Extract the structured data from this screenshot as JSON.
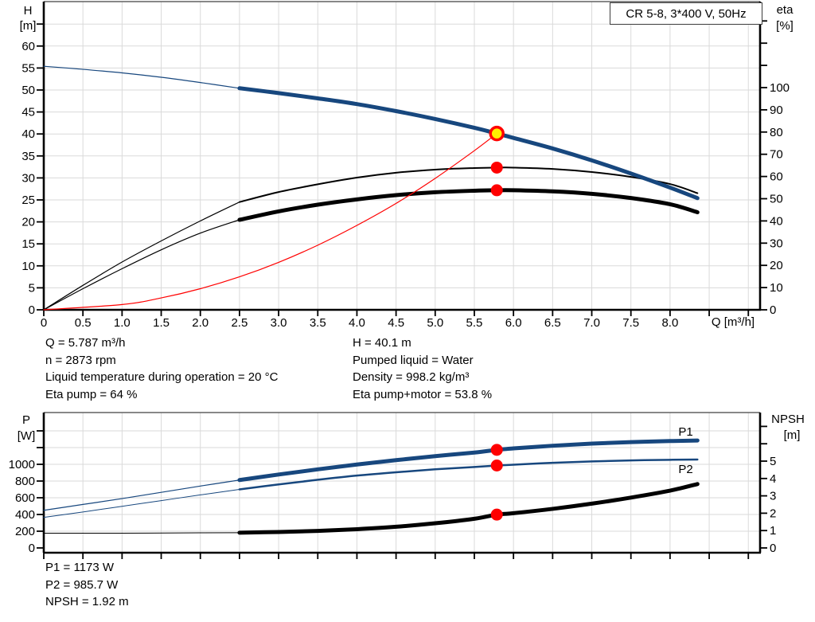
{
  "title_box": "CR 5-8, 3*400 V, 50Hz",
  "colors": {
    "curve_blue": "#17477E",
    "curve_black": "#000000",
    "curve_red": "#FF0000",
    "marker_red": "#FF0000",
    "marker_yellow": "#FFEE00",
    "grid": "#DADADA",
    "axis": "#000000",
    "border": "#606060",
    "label_blue": "#17477E"
  },
  "info_duty": [
    "Q = 5.787 m³/h",
    "n = 2873 rpm",
    "Liquid temperature during operation = 20 °C",
    "Eta pump = 64 %"
  ],
  "info_liquid": [
    "H = 40.1 m",
    "Pumped liquid = Water",
    "Density = 998.2 kg/m³",
    "Eta pump+motor = 53.8 %"
  ],
  "info_power": [
    "P1 = 1173 W",
    "P2 = 985.7 W",
    "NPSH = 1.92 m"
  ],
  "chart_data": [
    {
      "type": "line",
      "title": "CR 5-8, 3*400 V, 50Hz",
      "x_axis": {
        "label": "Q [m³/h]",
        "min": 0,
        "max": 9.15,
        "tick_step": 0.5,
        "label_max": 8.0
      },
      "y_left": {
        "label": "H",
        "unit": "[m]",
        "min": 0,
        "max": 70,
        "tick_step": 5,
        "label_max": 60
      },
      "y_right": {
        "label": "eta",
        "unit": "[%]",
        "min": 0,
        "max": 138,
        "tick_step": 10,
        "label_max": 100
      },
      "grid": true,
      "series": [
        {
          "name": "eta-pump-low-flow",
          "axis": "right",
          "color": "#000000",
          "width": 1.2,
          "points": [
            [
              0,
              0
            ],
            [
              0.5,
              11
            ],
            [
              1,
              21.5
            ],
            [
              1.5,
              31
            ],
            [
              2,
              40
            ],
            [
              2.5,
              48.5
            ]
          ]
        },
        {
          "name": "eta-pump-curve",
          "axis": "right",
          "color": "#000000",
          "width": 2,
          "points": [
            [
              2.5,
              48.5
            ],
            [
              3,
              53
            ],
            [
              3.5,
              56.5
            ],
            [
              4,
              59.5
            ],
            [
              4.5,
              61.7
            ],
            [
              5,
              63.1
            ],
            [
              5.5,
              63.8
            ],
            [
              5.787,
              64
            ],
            [
              6,
              64
            ],
            [
              6.5,
              63.4
            ],
            [
              7,
              62
            ],
            [
              7.5,
              59.8
            ],
            [
              8,
              56.6
            ],
            [
              8.35,
              52.5
            ]
          ]
        },
        {
          "name": "eta-pump-motor-low-flow",
          "axis": "right",
          "color": "#000000",
          "width": 1.2,
          "points": [
            [
              0,
              0
            ],
            [
              0.5,
              9.5
            ],
            [
              1,
              18.5
            ],
            [
              1.5,
              27
            ],
            [
              2,
              34.5
            ],
            [
              2.5,
              40.5
            ]
          ]
        },
        {
          "name": "eta-pump-motor-curve",
          "axis": "right",
          "color": "#000000",
          "width": 5,
          "points": [
            [
              2.5,
              40.5
            ],
            [
              3,
              44.3
            ],
            [
              3.5,
              47.3
            ],
            [
              4,
              49.7
            ],
            [
              4.5,
              51.6
            ],
            [
              5,
              52.9
            ],
            [
              5.5,
              53.6
            ],
            [
              5.787,
              53.8
            ],
            [
              6,
              53.8
            ],
            [
              6.5,
              53.3
            ],
            [
              7,
              52.2
            ],
            [
              7.5,
              50.3
            ],
            [
              8,
              47.5
            ],
            [
              8.35,
              43.9
            ]
          ]
        },
        {
          "name": "head-curve-low-flow",
          "axis": "left",
          "color": "#17477E",
          "width": 1.2,
          "points": [
            [
              0,
              55.4
            ],
            [
              0.5,
              54.7
            ],
            [
              1,
              53.9
            ],
            [
              1.5,
              52.9
            ],
            [
              2,
              51.7
            ],
            [
              2.5,
              50.4
            ]
          ]
        },
        {
          "name": "head-curve",
          "axis": "left",
          "color": "#17477E",
          "width": 5,
          "points": [
            [
              2.5,
              50.4
            ],
            [
              3,
              49.3
            ],
            [
              3.5,
              48.1
            ],
            [
              4,
              46.8
            ],
            [
              4.5,
              45.2
            ],
            [
              5,
              43.4
            ],
            [
              5.5,
              41.4
            ],
            [
              5.787,
              40.1
            ],
            [
              6,
              39.1
            ],
            [
              6.5,
              36.7
            ],
            [
              7,
              34
            ],
            [
              7.5,
              31
            ],
            [
              8,
              27.8
            ],
            [
              8.35,
              25.4
            ]
          ]
        },
        {
          "name": "system-curve",
          "axis": "left",
          "color": "#FF0000",
          "width": 1.2,
          "points": [
            [
              0,
              0
            ],
            [
              1,
              1.2
            ],
            [
              1.5,
              2.7
            ],
            [
              2,
              4.8
            ],
            [
              2.5,
              7.5
            ],
            [
              3,
              10.8
            ],
            [
              3.5,
              14.7
            ],
            [
              4,
              19.2
            ],
            [
              4.5,
              24.2
            ],
            [
              5,
              29.9
            ],
            [
              5.5,
              36.2
            ],
            [
              5.787,
              40.1
            ]
          ]
        }
      ],
      "markers": [
        {
          "name": "duty-point",
          "axis": "left",
          "x": 5.787,
          "y": 40.1,
          "style": "ring-yellow"
        },
        {
          "name": "eta-pump-point",
          "axis": "right",
          "x": 5.787,
          "y": 64,
          "style": "dot-red"
        },
        {
          "name": "eta-pump-motor-point",
          "axis": "right",
          "x": 5.787,
          "y": 53.8,
          "style": "dot-red"
        }
      ],
      "labels": []
    },
    {
      "type": "line",
      "title": "",
      "x_axis": {
        "label": "",
        "min": 0,
        "max": 9.15,
        "tick_step": 0.5,
        "label_max": -1
      },
      "y_left": {
        "label": "P",
        "unit": "[W]",
        "min": 0,
        "max": 1550,
        "tick_step": 200,
        "label_max": 1000
      },
      "y_right": {
        "label": "NPSH",
        "unit": "[m]",
        "min": 0,
        "max": 7.6,
        "tick_step": 1,
        "label_max": 5
      },
      "grid": true,
      "series": [
        {
          "name": "p1-low-flow",
          "axis": "left",
          "color": "#17477E",
          "width": 1.2,
          "points": [
            [
              0,
              450
            ],
            [
              0.5,
              520
            ],
            [
              1,
              590
            ],
            [
              1.5,
              665
            ],
            [
              2,
              740
            ],
            [
              2.5,
              812
            ]
          ]
        },
        {
          "name": "p1-curve",
          "axis": "left",
          "color": "#17477E",
          "width": 5,
          "points": [
            [
              2.5,
              812
            ],
            [
              3,
              878
            ],
            [
              3.5,
              940
            ],
            [
              4,
              998
            ],
            [
              4.5,
              1050
            ],
            [
              5,
              1098
            ],
            [
              5.5,
              1140
            ],
            [
              5.787,
              1173
            ],
            [
              6,
              1190
            ],
            [
              6.5,
              1222
            ],
            [
              7,
              1248
            ],
            [
              7.5,
              1266
            ],
            [
              8,
              1278
            ],
            [
              8.35,
              1285
            ]
          ]
        },
        {
          "name": "p2-low-flow",
          "axis": "left",
          "color": "#17477E",
          "width": 1,
          "points": [
            [
              0,
              365
            ],
            [
              0.5,
              430
            ],
            [
              1,
              498
            ],
            [
              1.5,
              566
            ],
            [
              2,
              634
            ],
            [
              2.5,
              700
            ]
          ]
        },
        {
          "name": "p2-curve",
          "axis": "left",
          "color": "#17477E",
          "width": 2.5,
          "points": [
            [
              2.5,
              700
            ],
            [
              3,
              760
            ],
            [
              3.5,
              815
            ],
            [
              4,
              865
            ],
            [
              4.5,
              905
            ],
            [
              5,
              940
            ],
            [
              5.5,
              968
            ],
            [
              5.787,
              985.7
            ],
            [
              6,
              995
            ],
            [
              6.5,
              1018
            ],
            [
              7,
              1035
            ],
            [
              7.5,
              1047
            ],
            [
              8,
              1054
            ],
            [
              8.35,
              1057
            ]
          ]
        },
        {
          "name": "npsh-low-flow",
          "axis": "right",
          "color": "#000000",
          "width": 1,
          "points": [
            [
              0,
              0.85
            ],
            [
              1,
              0.85
            ],
            [
              2,
              0.87
            ],
            [
              2.5,
              0.88
            ]
          ]
        },
        {
          "name": "npsh-curve",
          "axis": "right",
          "color": "#000000",
          "width": 5,
          "points": [
            [
              2.5,
              0.88
            ],
            [
              3,
              0.92
            ],
            [
              3.5,
              0.98
            ],
            [
              4,
              1.08
            ],
            [
              4.5,
              1.22
            ],
            [
              5,
              1.42
            ],
            [
              5.5,
              1.68
            ],
            [
              5.787,
              1.92
            ],
            [
              6,
              2.0
            ],
            [
              6.5,
              2.25
            ],
            [
              7,
              2.55
            ],
            [
              7.5,
              2.9
            ],
            [
              8,
              3.3
            ],
            [
              8.35,
              3.68
            ]
          ]
        }
      ],
      "markers": [
        {
          "name": "p1-point",
          "axis": "left",
          "x": 5.787,
          "y": 1173,
          "style": "dot-red"
        },
        {
          "name": "p2-point",
          "axis": "left",
          "x": 5.787,
          "y": 985.7,
          "style": "dot-red"
        },
        {
          "name": "npsh-point",
          "axis": "right",
          "x": 5.787,
          "y": 1.92,
          "style": "dot-red"
        }
      ],
      "labels": [
        {
          "text": "P1",
          "axis": "left",
          "x": 8.2,
          "y": 1390
        },
        {
          "text": "P2",
          "axis": "left",
          "x": 8.2,
          "y": 945
        }
      ]
    }
  ]
}
